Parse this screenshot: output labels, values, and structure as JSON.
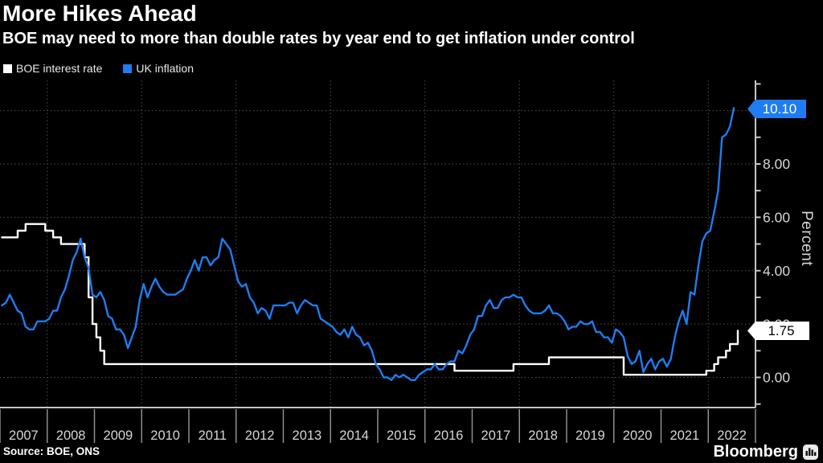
{
  "footer": {
    "source": "Source: BOE, ONS",
    "brand": "Bloomberg"
  },
  "chart_data": {
    "type": "line",
    "title": "More Hikes Ahead",
    "subtitle": "BOE may need to more than double rates by year end to get inflation under control",
    "ylabel": "Percent",
    "ylim": [
      -1,
      11
    ],
    "x_unit": "month",
    "start_year": 2007,
    "categories": [
      "2007",
      "2008",
      "2009",
      "2010",
      "2011",
      "2012",
      "2013",
      "2014",
      "2015",
      "2016",
      "2017",
      "2018",
      "2019",
      "2020",
      "2021",
      "2022"
    ],
    "grid": "dotted",
    "legend_position": "top-left",
    "x_grid_years": [
      2008,
      2010,
      2012,
      2014,
      2016,
      2018,
      2020,
      2022
    ],
    "y_grid": [
      0,
      2,
      4,
      6,
      8,
      10
    ],
    "y_ticks_labeled": [
      {
        "v": 0,
        "label": "0.00"
      },
      {
        "v": 2,
        "label": "2.00"
      },
      {
        "v": 4,
        "label": "4.00"
      },
      {
        "v": 6,
        "label": "6.00"
      },
      {
        "v": 8,
        "label": "8.00"
      }
    ],
    "series": [
      {
        "name": "BOE interest rate",
        "color": "#ffffff",
        "style": "step",
        "last_label": "1.75",
        "values": [
          5.25,
          5.25,
          5.25,
          5.25,
          5.5,
          5.5,
          5.75,
          5.75,
          5.75,
          5.75,
          5.75,
          5.5,
          5.5,
          5.25,
          5.25,
          5.0,
          5.0,
          5.0,
          5.0,
          5.0,
          5.0,
          4.5,
          3.0,
          2.0,
          1.5,
          1.0,
          0.5,
          0.5,
          0.5,
          0.5,
          0.5,
          0.5,
          0.5,
          0.5,
          0.5,
          0.5,
          0.5,
          0.5,
          0.5,
          0.5,
          0.5,
          0.5,
          0.5,
          0.5,
          0.5,
          0.5,
          0.5,
          0.5,
          0.5,
          0.5,
          0.5,
          0.5,
          0.5,
          0.5,
          0.5,
          0.5,
          0.5,
          0.5,
          0.5,
          0.5,
          0.5,
          0.5,
          0.5,
          0.5,
          0.5,
          0.5,
          0.5,
          0.5,
          0.5,
          0.5,
          0.5,
          0.5,
          0.5,
          0.5,
          0.5,
          0.5,
          0.5,
          0.5,
          0.5,
          0.5,
          0.5,
          0.5,
          0.5,
          0.5,
          0.5,
          0.5,
          0.5,
          0.5,
          0.5,
          0.5,
          0.5,
          0.5,
          0.5,
          0.5,
          0.5,
          0.5,
          0.5,
          0.5,
          0.5,
          0.5,
          0.5,
          0.5,
          0.5,
          0.5,
          0.5,
          0.5,
          0.5,
          0.5,
          0.5,
          0.5,
          0.5,
          0.5,
          0.5,
          0.5,
          0.5,
          0.25,
          0.25,
          0.25,
          0.25,
          0.25,
          0.25,
          0.25,
          0.25,
          0.25,
          0.25,
          0.25,
          0.25,
          0.25,
          0.25,
          0.25,
          0.5,
          0.5,
          0.5,
          0.5,
          0.5,
          0.5,
          0.5,
          0.5,
          0.5,
          0.75,
          0.75,
          0.75,
          0.75,
          0.75,
          0.75,
          0.75,
          0.75,
          0.75,
          0.75,
          0.75,
          0.75,
          0.75,
          0.75,
          0.75,
          0.75,
          0.75,
          0.75,
          0.75,
          0.1,
          0.1,
          0.1,
          0.1,
          0.1,
          0.1,
          0.1,
          0.1,
          0.1,
          0.1,
          0.1,
          0.1,
          0.1,
          0.1,
          0.1,
          0.1,
          0.1,
          0.1,
          0.1,
          0.1,
          0.1,
          0.25,
          0.25,
          0.5,
          0.75,
          0.75,
          1.0,
          1.25,
          1.25,
          1.75
        ]
      },
      {
        "name": "UK inflation",
        "color": "#1f7cf1",
        "style": "linear",
        "last_label": "10.10",
        "values": [
          2.7,
          2.8,
          3.1,
          2.8,
          2.5,
          2.4,
          1.9,
          1.8,
          1.8,
          2.1,
          2.1,
          2.1,
          2.2,
          2.5,
          2.5,
          3.0,
          3.3,
          3.8,
          4.4,
          4.7,
          5.2,
          4.5,
          4.1,
          3.1,
          3.0,
          3.2,
          2.9,
          2.3,
          2.2,
          1.8,
          1.8,
          1.6,
          1.1,
          1.5,
          1.9,
          2.9,
          3.5,
          3.0,
          3.4,
          3.7,
          3.4,
          3.2,
          3.1,
          3.1,
          3.1,
          3.2,
          3.3,
          3.7,
          4.0,
          4.4,
          4.0,
          4.5,
          4.5,
          4.2,
          4.4,
          4.5,
          5.2,
          5.0,
          4.8,
          4.2,
          3.6,
          3.4,
          3.5,
          3.0,
          2.8,
          2.4,
          2.6,
          2.5,
          2.2,
          2.7,
          2.7,
          2.7,
          2.7,
          2.8,
          2.8,
          2.4,
          2.7,
          2.9,
          2.8,
          2.7,
          2.7,
          2.2,
          2.1,
          2.0,
          1.9,
          1.7,
          1.6,
          1.8,
          1.5,
          1.9,
          1.6,
          1.5,
          1.2,
          1.3,
          1.0,
          0.5,
          0.3,
          0.0,
          0.0,
          -0.1,
          0.1,
          0.0,
          0.1,
          0.0,
          -0.1,
          -0.1,
          0.1,
          0.2,
          0.3,
          0.3,
          0.5,
          0.3,
          0.3,
          0.5,
          0.6,
          0.6,
          1.0,
          0.9,
          1.2,
          1.6,
          1.8,
          2.3,
          2.3,
          2.7,
          2.9,
          2.6,
          2.6,
          2.9,
          3.0,
          3.0,
          3.1,
          3.0,
          3.0,
          2.7,
          2.5,
          2.4,
          2.4,
          2.4,
          2.5,
          2.7,
          2.4,
          2.4,
          2.3,
          2.1,
          1.8,
          1.9,
          1.9,
          2.1,
          2.0,
          2.0,
          2.1,
          1.7,
          1.7,
          1.5,
          1.5,
          1.3,
          1.8,
          1.7,
          1.5,
          0.8,
          0.5,
          0.6,
          1.0,
          0.2,
          0.5,
          0.7,
          0.3,
          0.6,
          0.7,
          0.4,
          0.7,
          1.5,
          2.1,
          2.5,
          2.0,
          3.2,
          3.1,
          4.2,
          5.1,
          5.4,
          5.5,
          6.2,
          7.0,
          9.0,
          9.1,
          9.4,
          10.1
        ]
      }
    ]
  }
}
